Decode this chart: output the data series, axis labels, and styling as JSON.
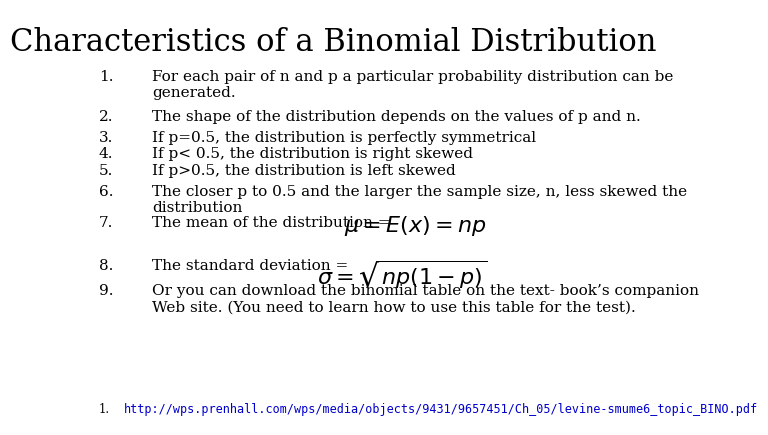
{
  "title": "Characteristics of a Binomial Distribution",
  "bg_color": "#ffffff",
  "title_color": "#000000",
  "text_color": "#000000",
  "link_color": "#0000cc",
  "title_fontsize": 22,
  "body_fontsize": 11,
  "small_fontsize": 8.5,
  "items": [
    {
      "num": "1.",
      "text": "For each pair of n and p a particular probability distribution can be\ngenerated."
    },
    {
      "num": "2.",
      "text": "The shape of the distribution depends on the values of p and n."
    },
    {
      "num": "3.",
      "text": "If p=0.5, the distribution is perfectly symmetrical"
    },
    {
      "num": "4.",
      "text": "If p< 0.5, the distribution is right skewed"
    },
    {
      "num": "5.",
      "text": "If p>0.5, the distribution is left skewed"
    },
    {
      "num": "6.",
      "text": "The closer p to 0.5 and the larger the sample size, n, less skewed the\ndistribution"
    },
    {
      "num": "7.",
      "text": "The mean of the distribution = "
    },
    {
      "num": "8.",
      "text": "The standard deviation =  "
    },
    {
      "num": "9.",
      "text": "Or you can download the binomial table on the text- book’s companion\nWeb site. (You need to learn how to use this table for the test)."
    }
  ],
  "footnote": "http://wps.prenhall.com/wps/media/objects/9431/9657451/Ch_05/levine-smume6_topic_BINO.pdf"
}
